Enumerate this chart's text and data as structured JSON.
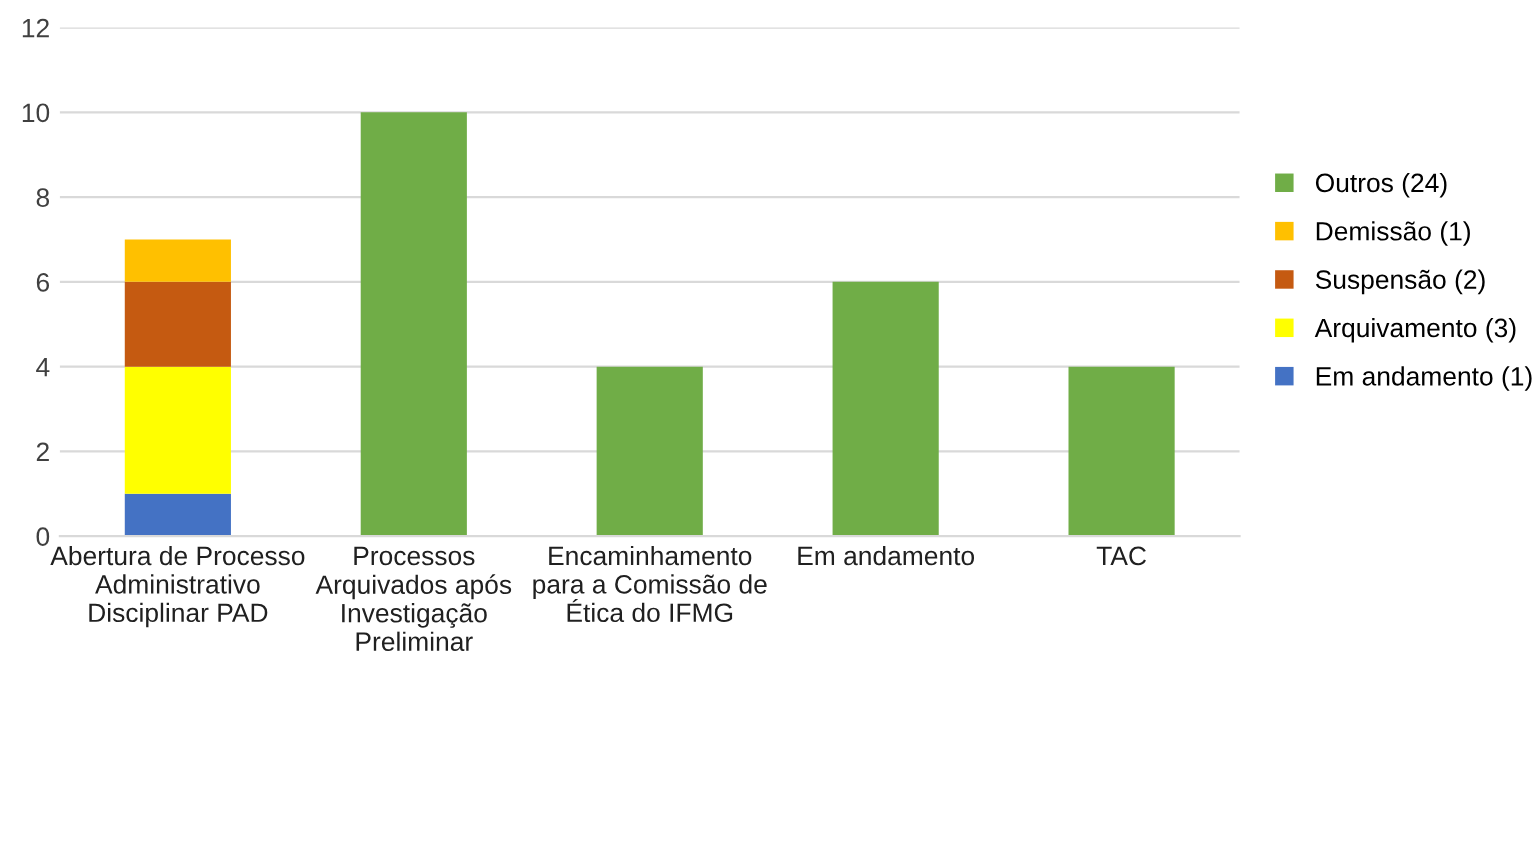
{
  "chart_data": {
    "type": "bar",
    "stacked": true,
    "categories": [
      "Abertura de Processo\nAdministrativo\nDisciplinar PAD",
      "Processos\nArquivados após\nInvestigação\nPreliminar",
      "Encaminhamento\npara a Comissão de\nÉtica do IFMG",
      "Em andamento",
      "TAC"
    ],
    "series": [
      {
        "name": "Em andamento (1)",
        "color": "#4472c4",
        "values": [
          1,
          null,
          null,
          null,
          null
        ]
      },
      {
        "name": "Arquivamento (3)",
        "color": "#ffff00",
        "values": [
          3,
          null,
          null,
          null,
          null
        ]
      },
      {
        "name": "Suspensão (2)",
        "color": "#c55a11",
        "values": [
          2,
          null,
          null,
          null,
          null
        ]
      },
      {
        "name": "Demissão (1)",
        "color": "#ffc000",
        "values": [
          1,
          null,
          null,
          null,
          null
        ]
      },
      {
        "name": "Outros (24)",
        "color": "#70ad47",
        "values": [
          null,
          10,
          4,
          6,
          4
        ]
      }
    ],
    "ylim": [
      0,
      12
    ],
    "yticks": [
      0,
      2,
      4,
      6,
      8,
      10,
      12
    ],
    "grid": "y",
    "legend": "right"
  }
}
